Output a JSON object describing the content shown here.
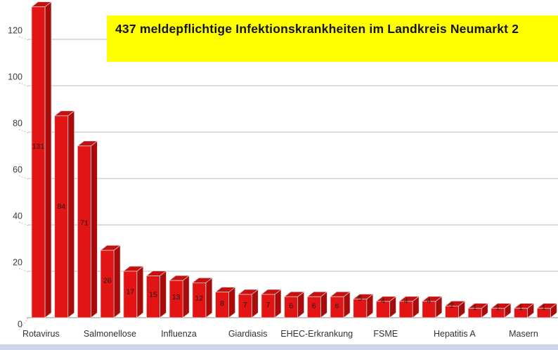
{
  "title": {
    "text": "437 meldepflichtige Infektionskrankheiten im Landkreis Neumarkt 2",
    "bg": "#ffff00",
    "color": "#141414"
  },
  "chart_data": {
    "type": "bar",
    "title": "437 meldepflichtige Infektionskrankheiten im Landkreis Neumarkt 2",
    "categories": [
      "Rotavirus",
      "",
      "",
      "Salmonellose",
      "",
      "",
      "Influenza",
      "",
      "",
      "Giardiasis",
      "",
      "",
      "EHEC-Erkrankung",
      "",
      "",
      "FSME",
      "",
      "",
      "Hepatitis A",
      "",
      "",
      "Masern",
      ""
    ],
    "values": [
      131,
      84,
      71,
      26,
      17,
      15,
      13,
      12,
      8,
      7,
      7,
      6,
      6,
      6,
      5,
      4,
      4,
      4,
      2,
      1,
      1,
      1,
      1
    ],
    "visible_category_labels": [
      "Rotavirus",
      "Salmonellose",
      "Influenza",
      "Giardiasis",
      "EHEC-Erkrankung",
      "FSME",
      "Hepatitis A",
      "Masern"
    ],
    "data_labels_shown": true,
    "xlabel": "",
    "ylabel": "",
    "y_ticks": [
      0,
      20,
      40,
      60,
      80,
      100,
      120
    ],
    "ylim": [
      0,
      140
    ],
    "grid": "horizontal",
    "legend": "none",
    "style": "3d-extruded-bars",
    "colors": {
      "bar_front": "#e21414",
      "bar_top": "#c91010",
      "bar_side": "#a90b0b",
      "bar_edge": "#d6d6d6",
      "gridline": "#bcbcbc",
      "axis_line": "#a8a8a8",
      "axis_text": "#3a3a3a",
      "value_text": "#1c1c1c",
      "window_strip": "#ccd6ea"
    }
  }
}
